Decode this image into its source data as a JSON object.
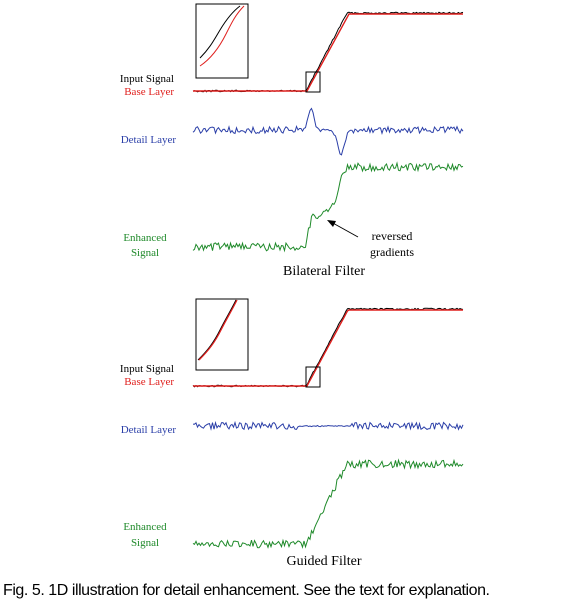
{
  "panels": [
    {
      "title": "Bilateral Filter",
      "labels": {
        "input_signal": "Input Signal",
        "base_layer": "Base Layer",
        "detail_layer": "Detail Layer",
        "enhanced_line1": "Enhanced",
        "enhanced_line2": "Signal"
      },
      "annotation": {
        "line1": "reversed",
        "line2": "gradients"
      }
    },
    {
      "title": "Guided Filter",
      "labels": {
        "input_signal": "Input Signal",
        "base_layer": "Base Layer",
        "detail_layer": "Detail Layer",
        "enhanced_line1": "Enhanced",
        "enhanced_line2": "Signal"
      }
    }
  ],
  "caption": "Fig. 5. 1D illustration for detail enhancement. See the text for explanation.",
  "colors": {
    "input": "#000000",
    "base": "#e0201e",
    "detail": "#2b3fa8",
    "enhanced": "#1f8a2a",
    "text": "#000000"
  }
}
